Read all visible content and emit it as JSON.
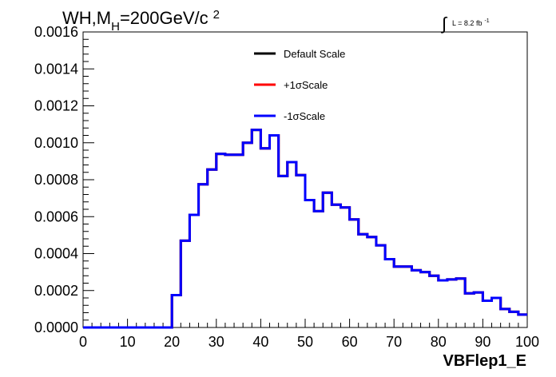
{
  "chart_data": {
    "type": "line",
    "title": "WH,M",
    "title_sub": "H",
    "title_rest": "=200GeV/c",
    "title_sup": "2",
    "lumi": {
      "symbol": "∫",
      "text": "L = 8.2 fb",
      "sup": "-1"
    },
    "xlabel": "VBFlep1_E",
    "xlim": [
      0,
      100
    ],
    "ylim": [
      0,
      0.0016
    ],
    "x_ticks": [
      "0",
      "10",
      "20",
      "30",
      "40",
      "50",
      "60",
      "70",
      "80",
      "90",
      "100"
    ],
    "y_ticks": [
      "0.0000",
      "0.0002",
      "0.0004",
      "0.0006",
      "0.0008",
      "0.0010",
      "0.0012",
      "0.0014",
      "0.0016"
    ],
    "bin_edges": [
      0,
      2,
      4,
      6,
      8,
      10,
      12,
      14,
      16,
      18,
      20,
      22,
      24,
      26,
      28,
      30,
      32,
      34,
      36,
      38,
      40,
      42,
      44,
      46,
      48,
      50,
      52,
      54,
      56,
      58,
      60,
      62,
      64,
      66,
      68,
      70,
      72,
      74,
      76,
      78,
      80,
      82,
      84,
      86,
      88,
      90,
      92,
      94,
      96,
      98,
      100
    ],
    "series": [
      {
        "name": "Default Scale",
        "color": "#000000",
        "values": [
          0,
          0,
          0,
          0,
          0,
          0,
          0,
          0,
          0,
          0,
          0.000175,
          0.00047,
          0.00061,
          0.000775,
          0.000855,
          0.00094,
          0.000935,
          0.000935,
          0.001,
          0.00107,
          0.00097,
          0.00104,
          0.00082,
          0.000895,
          0.000825,
          0.00069,
          0.00063,
          0.00073,
          0.000665,
          0.00065,
          0.000585,
          0.000505,
          0.00049,
          0.000445,
          0.00037,
          0.00033,
          0.00033,
          0.00031,
          0.0003,
          0.00028,
          0.000255,
          0.00026,
          0.000265,
          0.000185,
          0.00019,
          0.000145,
          0.00016,
          0.0001,
          8.5e-05,
          7e-05
        ]
      },
      {
        "name": "+1σScale",
        "color": "#ff0000",
        "values": [
          0,
          0,
          0,
          0,
          0,
          0,
          0,
          0,
          0,
          0,
          0.000175,
          0.00047,
          0.00061,
          0.000775,
          0.000855,
          0.00094,
          0.000935,
          0.000935,
          0.001,
          0.00107,
          0.00097,
          0.00104,
          0.00082,
          0.000895,
          0.000825,
          0.00069,
          0.00063,
          0.00073,
          0.000665,
          0.00065,
          0.000585,
          0.000505,
          0.00049,
          0.000445,
          0.00037,
          0.00033,
          0.00033,
          0.00031,
          0.0003,
          0.00028,
          0.000255,
          0.00026,
          0.000265,
          0.000185,
          0.00019,
          0.000145,
          0.00016,
          0.0001,
          8.5e-05,
          7e-05
        ]
      },
      {
        "name": "-1σScale",
        "color": "#0000ff",
        "values": [
          0,
          0,
          0,
          0,
          0,
          0,
          0,
          0,
          0,
          0,
          0.000175,
          0.00047,
          0.00061,
          0.000775,
          0.000855,
          0.00094,
          0.000935,
          0.000935,
          0.001,
          0.00107,
          0.00097,
          0.00104,
          0.00082,
          0.000895,
          0.000825,
          0.00069,
          0.00063,
          0.00073,
          0.000665,
          0.00065,
          0.000585,
          0.000505,
          0.00049,
          0.000445,
          0.00037,
          0.00033,
          0.00033,
          0.00031,
          0.0003,
          0.00028,
          0.000255,
          0.00026,
          0.000265,
          0.000185,
          0.00019,
          0.000145,
          0.00016,
          0.0001,
          8.5e-05,
          7e-05
        ]
      }
    ],
    "legend_position": "top-center",
    "grid": false
  }
}
